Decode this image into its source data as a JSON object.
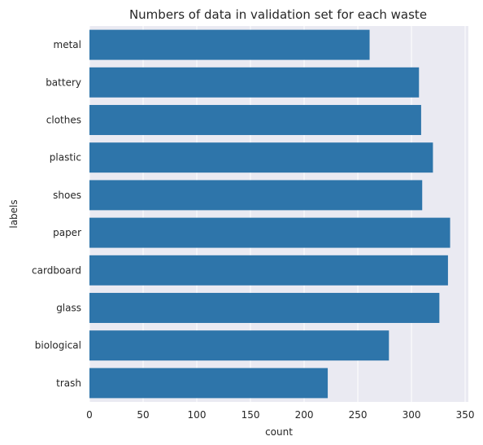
{
  "chart_data": {
    "type": "bar",
    "orientation": "horizontal",
    "title": "Numbers of data in validation set for each waste",
    "xlabel": "count",
    "ylabel": "labels",
    "categories": [
      "metal",
      "battery",
      "clothes",
      "plastic",
      "shoes",
      "paper",
      "cardboard",
      "glass",
      "biological",
      "trash"
    ],
    "values": [
      261,
      307,
      309,
      320,
      310,
      336,
      334,
      326,
      279,
      222
    ],
    "xlim": [
      0,
      353
    ],
    "xticks": [
      0,
      50,
      100,
      150,
      200,
      250,
      300,
      350
    ],
    "grid": true,
    "colors": {
      "bar": "#2e75aa",
      "plot_background": "#eaeaf2",
      "grid": "#ffffff"
    }
  }
}
